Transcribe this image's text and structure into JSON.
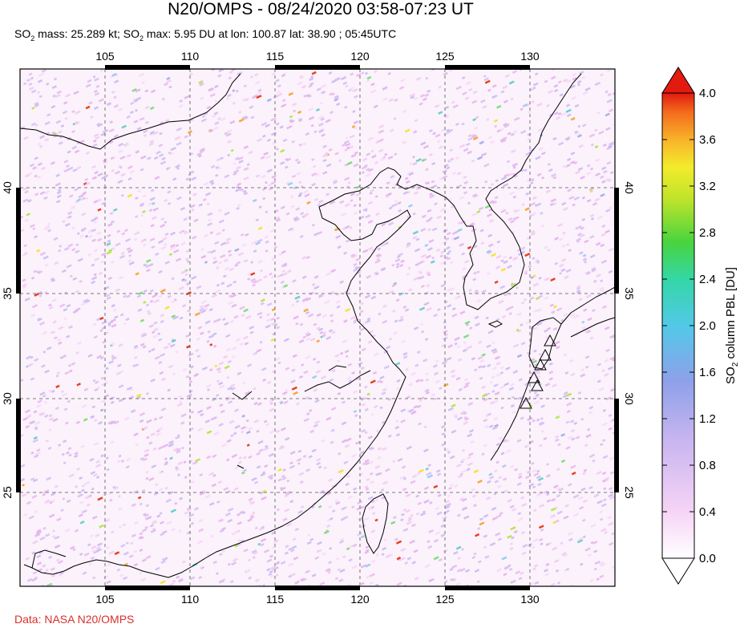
{
  "title": "N20/OMPS - 08/24/2020 03:58-07:23 UT",
  "subtitle": {
    "part1": "SO",
    "sub1": "2",
    "part2": " mass: 25.289 kt; SO",
    "sub2": "2",
    "part3": " max: 5.95 DU at lon: 100.87 lat: 38.90 ; 05:45UTC"
  },
  "credit": "Data: NASA N20/OMPS",
  "map": {
    "lon_min": 100,
    "lon_max": 135,
    "lat_min": 21,
    "lat_max": 45,
    "lon_ticks": [
      "105",
      "110",
      "115",
      "120",
      "125",
      "130"
    ],
    "lat_ticks": [
      "40",
      "35",
      "30",
      "25"
    ]
  },
  "colorbar": {
    "label_pre": "SO",
    "label_sub": "2",
    "label_post": " column PBL [DU]",
    "ticks": [
      "4.0",
      "3.6",
      "3.2",
      "2.8",
      "2.4",
      "2.0",
      "1.6",
      "1.2",
      "0.8",
      "0.4",
      "0.0"
    ],
    "colors": [
      "#ffffff",
      "#f6d4f6",
      "#c9b6f0",
      "#8fa0ea",
      "#52c9e8",
      "#34d7a6",
      "#49d43e",
      "#bde32a",
      "#f3ec2c",
      "#f8b22a",
      "#f36a1c",
      "#e21a10"
    ]
  },
  "volcano_icon": "triangle-outline-icon"
}
